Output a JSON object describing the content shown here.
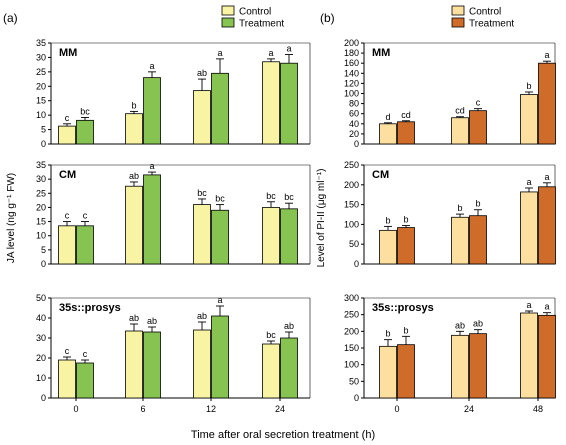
{
  "figure": {
    "xlabel": "Time after oral secretion treatment (h)"
  },
  "chart_data": [
    {
      "type": "bar",
      "panel_label": "(a)",
      "ylabel": "JA level (ng g⁻¹ FW)",
      "x_ticks": [
        "0",
        "6",
        "12",
        "24"
      ],
      "legend": {
        "position": "top-right",
        "entries": [
          "Control",
          "Treatment"
        ]
      },
      "colors": {
        "Control": "#f8f4a4",
        "Treatment": "#86c350"
      },
      "subplots": [
        {
          "title": "MM",
          "ylim": [
            0,
            35
          ],
          "yticks": [
            0,
            5,
            10,
            15,
            20,
            25,
            30,
            35
          ],
          "series": [
            {
              "name": "Control",
              "values": [
                6.2,
                10.5,
                18.5,
                28.5
              ],
              "errors": [
                0.8,
                0.8,
                4.0,
                1.0
              ],
              "letters": [
                "c",
                "b",
                "ab",
                "a"
              ]
            },
            {
              "name": "Treatment",
              "values": [
                8.2,
                23.0,
                24.5,
                28.0
              ],
              "errors": [
                1.0,
                2.0,
                5.0,
                3.0
              ],
              "letters": [
                "bc",
                "a",
                "a",
                "a"
              ]
            }
          ]
        },
        {
          "title": "CM",
          "ylim": [
            0,
            35
          ],
          "yticks": [
            0,
            5,
            10,
            15,
            20,
            25,
            30,
            35
          ],
          "series": [
            {
              "name": "Control",
              "values": [
                13.5,
                27.5,
                21.0,
                20.0
              ],
              "errors": [
                1.5,
                1.5,
                2.0,
                2.0
              ],
              "letters": [
                "c",
                "ab",
                "bc",
                "bc"
              ]
            },
            {
              "name": "Treatment",
              "values": [
                13.5,
                31.5,
                19.0,
                19.5
              ],
              "errors": [
                1.5,
                1.0,
                2.0,
                2.0
              ],
              "letters": [
                "c",
                "a",
                "bc",
                "bc"
              ]
            }
          ]
        },
        {
          "title": "35s::prosys",
          "ylim": [
            0,
            50
          ],
          "yticks": [
            0,
            10,
            20,
            30,
            40,
            50
          ],
          "series": [
            {
              "name": "Control",
              "values": [
                19.0,
                33.5,
                34.0,
                27.0
              ],
              "errors": [
                1.5,
                3.5,
                4.0,
                1.5
              ],
              "letters": [
                "c",
                "ab",
                "ab",
                "bc"
              ]
            },
            {
              "name": "Treatment",
              "values": [
                17.5,
                33.0,
                41.0,
                30.0
              ],
              "errors": [
                1.5,
                2.5,
                5.0,
                3.0
              ],
              "letters": [
                "c",
                "ab",
                "a",
                "ab"
              ]
            }
          ]
        }
      ]
    },
    {
      "type": "bar",
      "panel_label": "(b)",
      "ylabel": "Level of PI-II (μg ml⁻¹)",
      "x_ticks": [
        "0",
        "24",
        "48"
      ],
      "legend": {
        "position": "top-right",
        "entries": [
          "Control",
          "Treatment"
        ]
      },
      "colors": {
        "Control": "#fde0a0",
        "Treatment": "#d06c2a"
      },
      "subplots": [
        {
          "title": "MM",
          "ylim": [
            0,
            200
          ],
          "yticks": [
            0,
            20,
            40,
            60,
            80,
            100,
            120,
            140,
            160,
            180,
            200
          ],
          "series": [
            {
              "name": "Control",
              "values": [
                40,
                52,
                98
              ],
              "errors": [
                2,
                2,
                5
              ],
              "letters": [
                "d",
                "cd",
                "b"
              ]
            },
            {
              "name": "Treatment",
              "values": [
                44,
                66,
                160
              ],
              "errors": [
                2,
                4,
                4
              ],
              "letters": [
                "cd",
                "c",
                "a"
              ]
            }
          ]
        },
        {
          "title": "CM",
          "ylim": [
            0,
            250
          ],
          "yticks": [
            0,
            50,
            100,
            150,
            200,
            250
          ],
          "series": [
            {
              "name": "Control",
              "values": [
                85,
                118,
                182
              ],
              "errors": [
                10,
                8,
                10
              ],
              "letters": [
                "b",
                "b",
                "a"
              ]
            },
            {
              "name": "Treatment",
              "values": [
                92,
                122,
                195
              ],
              "errors": [
                5,
                15,
                10
              ],
              "letters": [
                "b",
                "b",
                "a"
              ]
            }
          ]
        },
        {
          "title": "35s::prosys",
          "ylim": [
            0,
            300
          ],
          "yticks": [
            0,
            50,
            100,
            150,
            200,
            250,
            300
          ],
          "series": [
            {
              "name": "Control",
              "values": [
                155,
                188,
                255
              ],
              "errors": [
                20,
                12,
                6
              ],
              "letters": [
                "b",
                "ab",
                "a"
              ]
            },
            {
              "name": "Treatment",
              "values": [
                160,
                193,
                248
              ],
              "errors": [
                25,
                12,
                8
              ],
              "letters": [
                "b",
                "ab",
                "a"
              ]
            }
          ]
        }
      ]
    }
  ]
}
